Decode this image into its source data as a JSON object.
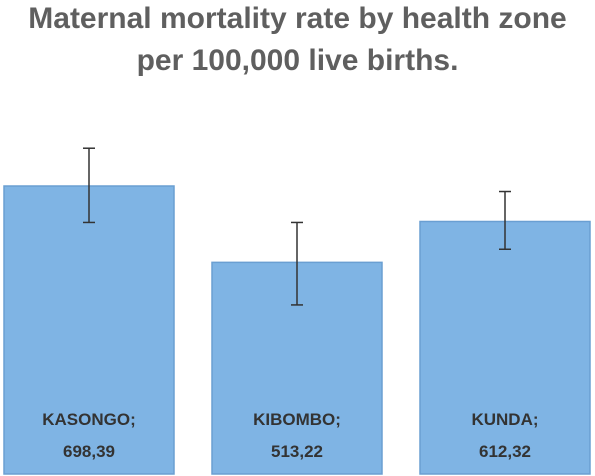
{
  "chart_data": {
    "type": "bar",
    "title": [
      "Maternal mortality rate by health zone",
      "per 100,000 live births."
    ],
    "categories": [
      "KASONGO",
      "KIBOMBO",
      "KUNDA"
    ],
    "values": [
      698.39,
      513.22,
      612.32
    ],
    "value_labels": [
      "698,39",
      "513,22",
      "612,32"
    ],
    "category_labels": [
      "KASONGO;",
      "KIBOMBO;",
      "KUNDA;"
    ],
    "error_bars": [
      {
        "low": 610,
        "high": 790
      },
      {
        "low": 410,
        "high": 610
      },
      {
        "low": 545,
        "high": 685
      }
    ],
    "ylim": [
      0,
      1000
    ],
    "grid": false,
    "legend": "none",
    "colors": {
      "bar_fill": "#7fb4e4",
      "bar_stroke": "#6a9fd2",
      "error_bar": "#333333"
    }
  }
}
